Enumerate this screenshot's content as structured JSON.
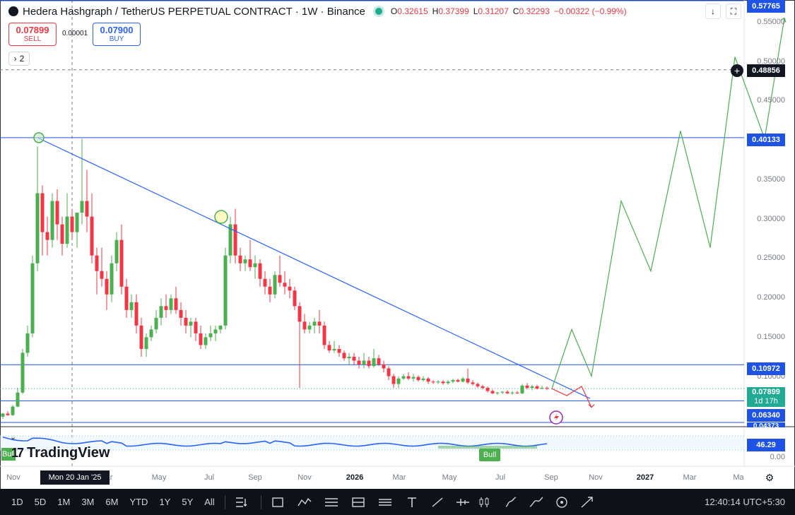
{
  "header": {
    "title": "Hedera Hashgraph / TetherUS PERPETUAL CONTRACT · 1W · Binance",
    "ohlc": [
      {
        "k": "O",
        "v": "0.32615"
      },
      {
        "k": "H",
        "v": "0.37399"
      },
      {
        "k": "L",
        "v": "0.31207"
      },
      {
        "k": "C",
        "v": "0.32293"
      }
    ],
    "change": "−0.00322 (−0.99%)"
  },
  "trade": {
    "sell_price": "0.07899",
    "sell_label": "SELL",
    "buy_price": "0.07900",
    "buy_label": "BUY",
    "spread": "0.00001"
  },
  "indicators_count": "2",
  "price_scale": {
    "ticks": [
      "0.55000",
      "0.50000",
      "0.45000",
      "0.35000",
      "0.30000",
      "0.25000",
      "0.20000",
      "0.15000",
      "0.10000"
    ],
    "labels": {
      "top": "0.57765",
      "crosshair": "0.48856",
      "level_high": "0.40133",
      "level_mid": "0.10972",
      "current": "0.07899",
      "countdown": "1d 17h",
      "level_low": "0.06340",
      "level_bottom": "0.04373"
    }
  },
  "time_axis": {
    "labels": [
      "Nov",
      "Mar",
      "May",
      "Jul",
      "Sep",
      "Nov",
      "2026",
      "Mar",
      "May",
      "Jul",
      "Sep",
      "Nov",
      "2027",
      "Mar",
      "Ma"
    ],
    "crosshair_date": "Mon 20 Jan '25"
  },
  "indicator_pane": {
    "rsi_value": "46.29",
    "zero": "0.00",
    "bull_label": "Bull",
    "bull_left": "Bull",
    "logo": "TradingView"
  },
  "toolbar": {
    "timeframes": [
      "1D",
      "5D",
      "1M",
      "3M",
      "6M",
      "YTD",
      "1Y",
      "5Y",
      "All"
    ],
    "clock": "12:40:14 UTC+5:30"
  },
  "colors": {
    "up": "#4caf50",
    "down": "#f23645",
    "trendline": "#2962ff",
    "projection_up": "#4caf50",
    "projection_down": "#f23645"
  },
  "chart_data": {
    "type": "candlestick",
    "title": "Hedera Hashgraph / TetherUS PERPETUAL CONTRACT · 1W · Binance",
    "ylim": [
      0.03,
      0.585
    ],
    "x_ticks": [
      "Nov",
      "Mar",
      "May",
      "Jul",
      "Sep",
      "Nov",
      "2026",
      "Mar",
      "May",
      "Jul",
      "Sep",
      "Nov",
      "2027",
      "Mar",
      "Ma"
    ],
    "candles": [
      [
        0.043,
        0.048,
        0.04,
        0.047
      ],
      [
        0.047,
        0.05,
        0.044,
        0.045
      ],
      [
        0.045,
        0.058,
        0.044,
        0.056
      ],
      [
        0.056,
        0.08,
        0.055,
        0.074
      ],
      [
        0.074,
        0.13,
        0.072,
        0.125
      ],
      [
        0.125,
        0.16,
        0.12,
        0.15
      ],
      [
        0.15,
        0.25,
        0.145,
        0.24
      ],
      [
        0.24,
        0.39,
        0.23,
        0.33
      ],
      [
        0.33,
        0.34,
        0.25,
        0.28
      ],
      [
        0.28,
        0.3,
        0.25,
        0.27
      ],
      [
        0.27,
        0.33,
        0.26,
        0.32
      ],
      [
        0.32,
        0.335,
        0.27,
        0.29
      ],
      [
        0.29,
        0.3,
        0.25,
        0.265
      ],
      [
        0.265,
        0.33,
        0.26,
        0.3
      ],
      [
        0.3,
        0.31,
        0.27,
        0.28
      ],
      [
        0.28,
        0.3,
        0.26,
        0.305
      ],
      [
        0.305,
        0.4,
        0.29,
        0.32
      ],
      [
        0.32,
        0.36,
        0.28,
        0.3
      ],
      [
        0.3,
        0.33,
        0.24,
        0.25
      ],
      [
        0.25,
        0.26,
        0.2,
        0.23
      ],
      [
        0.23,
        0.26,
        0.21,
        0.22
      ],
      [
        0.22,
        0.23,
        0.18,
        0.2
      ],
      [
        0.2,
        0.25,
        0.19,
        0.24
      ],
      [
        0.24,
        0.28,
        0.23,
        0.27
      ],
      [
        0.27,
        0.29,
        0.2,
        0.21
      ],
      [
        0.21,
        0.22,
        0.17,
        0.18
      ],
      [
        0.18,
        0.2,
        0.17,
        0.19
      ],
      [
        0.19,
        0.2,
        0.15,
        0.16
      ],
      [
        0.16,
        0.17,
        0.12,
        0.13
      ],
      [
        0.13,
        0.15,
        0.12,
        0.145
      ],
      [
        0.145,
        0.16,
        0.14,
        0.155
      ],
      [
        0.155,
        0.18,
        0.15,
        0.17
      ],
      [
        0.17,
        0.195,
        0.16,
        0.185
      ],
      [
        0.185,
        0.2,
        0.17,
        0.18
      ],
      [
        0.18,
        0.2,
        0.175,
        0.195
      ],
      [
        0.195,
        0.21,
        0.175,
        0.18
      ],
      [
        0.18,
        0.19,
        0.16,
        0.17
      ],
      [
        0.17,
        0.18,
        0.15,
        0.16
      ],
      [
        0.16,
        0.17,
        0.145,
        0.165
      ],
      [
        0.165,
        0.17,
        0.14,
        0.15
      ],
      [
        0.15,
        0.16,
        0.13,
        0.135
      ],
      [
        0.135,
        0.15,
        0.13,
        0.145
      ],
      [
        0.145,
        0.16,
        0.14,
        0.15
      ],
      [
        0.15,
        0.16,
        0.14,
        0.155
      ],
      [
        0.155,
        0.16,
        0.15,
        0.16
      ],
      [
        0.16,
        0.26,
        0.155,
        0.25
      ],
      [
        0.25,
        0.3,
        0.24,
        0.29
      ],
      [
        0.29,
        0.31,
        0.24,
        0.25
      ],
      [
        0.25,
        0.26,
        0.23,
        0.24
      ],
      [
        0.24,
        0.25,
        0.23,
        0.245
      ],
      [
        0.245,
        0.27,
        0.23,
        0.235
      ],
      [
        0.235,
        0.25,
        0.22,
        0.24
      ],
      [
        0.24,
        0.245,
        0.21,
        0.22
      ],
      [
        0.22,
        0.23,
        0.2,
        0.21
      ],
      [
        0.21,
        0.22,
        0.19,
        0.2
      ],
      [
        0.2,
        0.23,
        0.195,
        0.225
      ],
      [
        0.225,
        0.25,
        0.21,
        0.215
      ],
      [
        0.215,
        0.23,
        0.2,
        0.21
      ],
      [
        0.21,
        0.22,
        0.195,
        0.205
      ],
      [
        0.205,
        0.21,
        0.18,
        0.185
      ],
      [
        0.185,
        0.19,
        0.08,
        0.165
      ],
      [
        0.165,
        0.175,
        0.15,
        0.155
      ],
      [
        0.155,
        0.165,
        0.15,
        0.16
      ],
      [
        0.16,
        0.17,
        0.15,
        0.165
      ],
      [
        0.165,
        0.18,
        0.15,
        0.16
      ],
      [
        0.16,
        0.165,
        0.13,
        0.135
      ],
      [
        0.135,
        0.14,
        0.125,
        0.128
      ],
      [
        0.128,
        0.14,
        0.125,
        0.13
      ],
      [
        0.13,
        0.135,
        0.12,
        0.125
      ],
      [
        0.125,
        0.128,
        0.115,
        0.118
      ],
      [
        0.118,
        0.125,
        0.11,
        0.12
      ],
      [
        0.12,
        0.125,
        0.11,
        0.115
      ],
      [
        0.115,
        0.12,
        0.105,
        0.11
      ],
      [
        0.11,
        0.125,
        0.105,
        0.115
      ],
      [
        0.115,
        0.12,
        0.105,
        0.108
      ],
      [
        0.108,
        0.13,
        0.106,
        0.118
      ],
      [
        0.118,
        0.122,
        0.108,
        0.11
      ],
      [
        0.11,
        0.115,
        0.1,
        0.105
      ],
      [
        0.105,
        0.108,
        0.09,
        0.095
      ],
      [
        0.095,
        0.098,
        0.08,
        0.085
      ],
      [
        0.085,
        0.095,
        0.08,
        0.092
      ],
      [
        0.092,
        0.098,
        0.09,
        0.095
      ],
      [
        0.095,
        0.1,
        0.09,
        0.092
      ],
      [
        0.092,
        0.098,
        0.088,
        0.094
      ],
      [
        0.094,
        0.096,
        0.088,
        0.09
      ],
      [
        0.09,
        0.095,
        0.088,
        0.092
      ],
      [
        0.092,
        0.094,
        0.085,
        0.088
      ],
      [
        0.088,
        0.09,
        0.085,
        0.087
      ],
      [
        0.087,
        0.09,
        0.085,
        0.088
      ],
      [
        0.088,
        0.09,
        0.084,
        0.086
      ],
      [
        0.086,
        0.09,
        0.084,
        0.088
      ],
      [
        0.088,
        0.092,
        0.086,
        0.09
      ],
      [
        0.09,
        0.092,
        0.087,
        0.088
      ],
      [
        0.088,
        0.094,
        0.087,
        0.092
      ],
      [
        0.092,
        0.105,
        0.085,
        0.087
      ],
      [
        0.087,
        0.09,
        0.083,
        0.085
      ],
      [
        0.085,
        0.087,
        0.08,
        0.082
      ],
      [
        0.082,
        0.084,
        0.078,
        0.08
      ],
      [
        0.08,
        0.082,
        0.074,
        0.076
      ],
      [
        0.076,
        0.078,
        0.072,
        0.073
      ],
      [
        0.073,
        0.075,
        0.071,
        0.074
      ],
      [
        0.074,
        0.076,
        0.072,
        0.075
      ],
      [
        0.075,
        0.077,
        0.072,
        0.073
      ],
      [
        0.073,
        0.076,
        0.071,
        0.074
      ],
      [
        0.074,
        0.076,
        0.072,
        0.073
      ],
      [
        0.073,
        0.085,
        0.072,
        0.083
      ],
      [
        0.083,
        0.086,
        0.078,
        0.08
      ],
      [
        0.08,
        0.084,
        0.077,
        0.082
      ],
      [
        0.082,
        0.084,
        0.078,
        0.079
      ],
      [
        0.079,
        0.083,
        0.078,
        0.08
      ],
      [
        0.08,
        0.082,
        0.077,
        0.079
      ]
    ],
    "horizontal_levels": [
      0.57765,
      0.40133,
      0.10972,
      0.0634,
      0.04373
    ],
    "crosshair_level": 0.48856,
    "trendline": [
      [
        7,
        0.40133
      ],
      [
        113,
        0.07
      ]
    ],
    "projection_up": [
      [
        111,
        0.079
      ],
      [
        115,
        0.155
      ],
      [
        119,
        0.095
      ],
      [
        125,
        0.32
      ],
      [
        131,
        0.23
      ],
      [
        137,
        0.41
      ],
      [
        143,
        0.26
      ],
      [
        148,
        0.505
      ],
      [
        154,
        0.4
      ],
      [
        158,
        0.555
      ]
    ],
    "projection_down": [
      [
        111,
        0.079
      ],
      [
        114,
        0.07
      ],
      [
        117,
        0.082
      ],
      [
        119,
        0.055
      ]
    ]
  }
}
